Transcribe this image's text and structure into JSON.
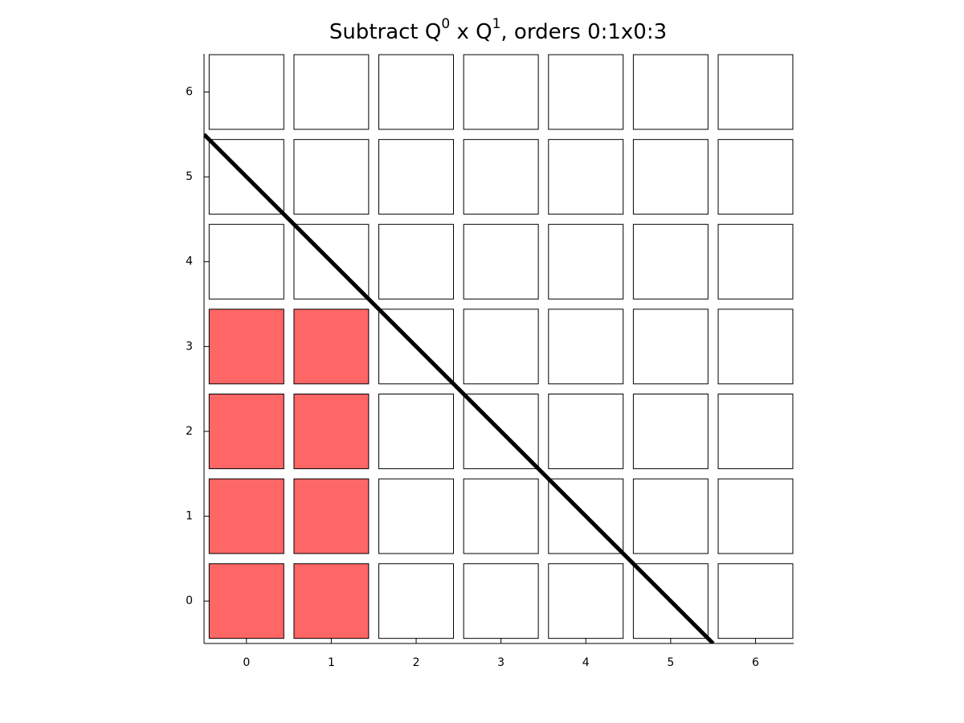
{
  "chart_data": {
    "type": "cells",
    "title": [
      "Subtract Q",
      "0",
      " x Q",
      "1",
      ", orders 0:1x0:3"
    ],
    "x": [
      0,
      1,
      2,
      3,
      4,
      5,
      6
    ],
    "y": [
      0,
      1,
      2,
      3,
      4,
      5,
      6
    ],
    "filled_x": [
      0,
      1
    ],
    "filled_y": [
      0,
      1,
      2,
      3
    ],
    "fill_color": "#ff6666",
    "line": {
      "x": [
        -0.5,
        5.5
      ],
      "y": [
        5.5,
        -0.5
      ],
      "color": "#000000"
    },
    "xlim": [
      -0.5,
      6.45
    ],
    "ylim": [
      -0.5,
      6.45
    ],
    "xticks": [
      0,
      1,
      2,
      3,
      4,
      5,
      6
    ],
    "yticks": [
      0,
      1,
      2,
      3,
      4,
      5,
      6
    ]
  }
}
